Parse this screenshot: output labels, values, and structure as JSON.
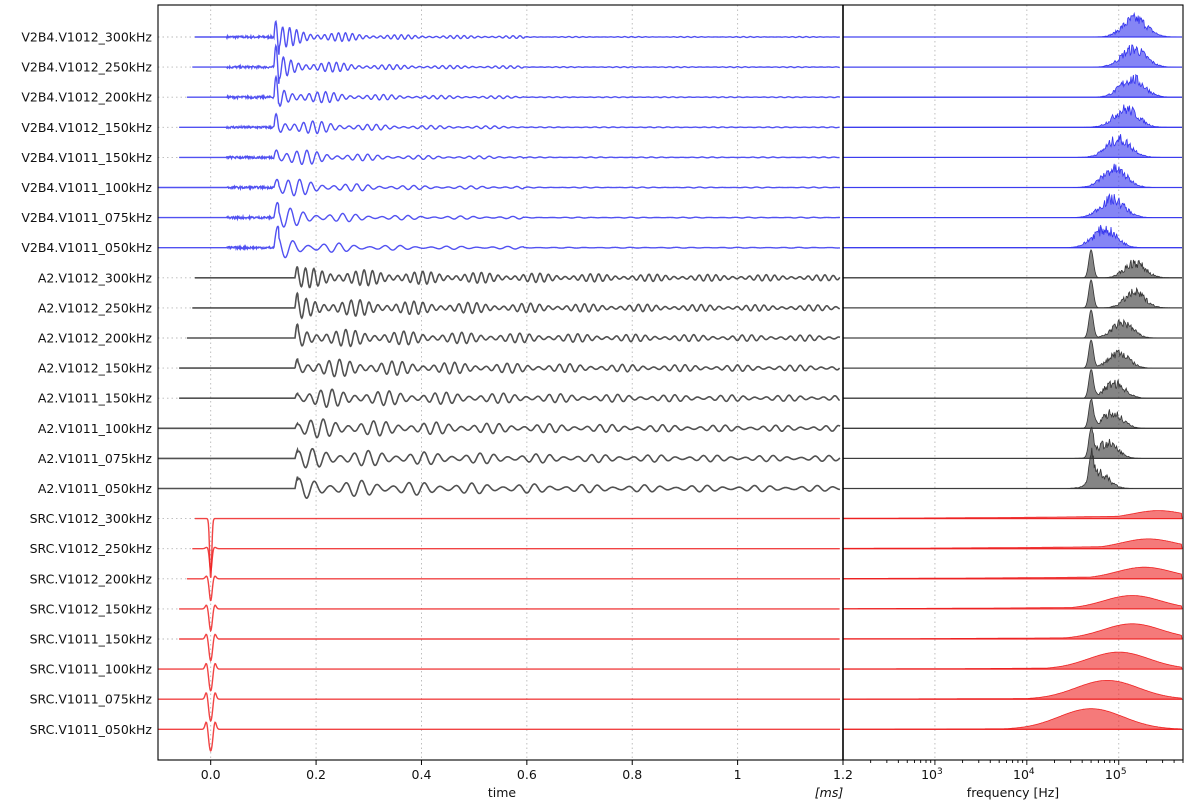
{
  "chart_data": [
    {
      "type": "line",
      "panel": "time",
      "xlabel": "time",
      "unit_label": "[ms]",
      "xlim": [
        -0.1,
        1.2
      ],
      "x_ticks": [
        {
          "value": 0.0,
          "label": "0.0"
        },
        {
          "value": 0.2,
          "label": "0.2"
        },
        {
          "value": 0.4,
          "label": "0.4"
        },
        {
          "value": 0.6,
          "label": "0.6"
        },
        {
          "value": 0.8,
          "label": "0.8"
        },
        {
          "value": 1.0,
          "label": "1"
        },
        {
          "value": 1.2,
          "label": "1.2"
        }
      ],
      "grid": "vertical dotted",
      "groups": [
        {
          "name": "V2B4",
          "color": "#3333ee",
          "onset_ms": 0.12,
          "traces": [
            {
              "label": "V2B4.V1012_300kHz",
              "start_ms": -0.03
            },
            {
              "label": "V2B4.V1012_250kHz",
              "start_ms": -0.035
            },
            {
              "label": "V2B4.V1012_200kHz",
              "start_ms": -0.045
            },
            {
              "label": "V2B4.V1012_150kHz",
              "start_ms": -0.06
            },
            {
              "label": "V2B4.V1011_150kHz",
              "start_ms": -0.06
            },
            {
              "label": "V2B4.V1011_100kHz",
              "start_ms": -0.1
            },
            {
              "label": "V2B4.V1011_075kHz",
              "start_ms": -0.1
            },
            {
              "label": "V2B4.V1011_050kHz",
              "start_ms": -0.1
            }
          ]
        },
        {
          "name": "A2",
          "color": "#333333",
          "onset_ms": 0.16,
          "traces": [
            {
              "label": "A2.V1012_300kHz",
              "start_ms": -0.03
            },
            {
              "label": "A2.V1012_250kHz",
              "start_ms": -0.035
            },
            {
              "label": "A2.V1012_200kHz",
              "start_ms": -0.045
            },
            {
              "label": "A2.V1012_150kHz",
              "start_ms": -0.06
            },
            {
              "label": "A2.V1011_150kHz",
              "start_ms": -0.06
            },
            {
              "label": "A2.V1011_100kHz",
              "start_ms": -0.1
            },
            {
              "label": "A2.V1011_075kHz",
              "start_ms": -0.1
            },
            {
              "label": "A2.V1011_050kHz",
              "start_ms": -0.1
            }
          ]
        },
        {
          "name": "SRC",
          "color": "#ee2222",
          "onset_ms": 0.0,
          "traces": [
            {
              "label": "SRC.V1012_300kHz",
              "start_ms": -0.03
            },
            {
              "label": "SRC.V1012_250kHz",
              "start_ms": -0.035
            },
            {
              "label": "SRC.V1012_200kHz",
              "start_ms": -0.045
            },
            {
              "label": "SRC.V1012_150kHz",
              "start_ms": -0.06
            },
            {
              "label": "SRC.V1011_150kHz",
              "start_ms": -0.06
            },
            {
              "label": "SRC.V1011_100kHz",
              "start_ms": -0.1
            },
            {
              "label": "SRC.V1011_075kHz",
              "start_ms": -0.1
            },
            {
              "label": "SRC.V1011_050kHz",
              "start_ms": -0.1
            }
          ]
        }
      ]
    },
    {
      "type": "area",
      "panel": "spectrum",
      "xlabel": "frequency [Hz]",
      "xscale": "log",
      "xlim_hz": [
        100,
        500000
      ],
      "x_ticks": [
        {
          "value": 1000,
          "base": "10",
          "exp": "3"
        },
        {
          "value": 10000,
          "base": "10",
          "exp": "4"
        },
        {
          "value": 100000,
          "base": "10",
          "exp": "5"
        }
      ],
      "grid": "vertical dotted",
      "group_peak_hz": {
        "V2B4": [
          150000,
          145000,
          140000,
          120000,
          100000,
          90000,
          85000,
          70000
        ],
        "A2": [
          [
            50000,
            150000
          ],
          [
            50000,
            150000
          ],
          [
            50000,
            110000
          ],
          [
            50000,
            100000
          ],
          [
            50000,
            90000
          ],
          [
            50000,
            85000
          ],
          [
            50000,
            75000
          ],
          [
            50000,
            60000
          ]
        ],
        "SRC": [
          270000,
          210000,
          190000,
          140000,
          140000,
          100000,
          75000,
          50000
        ]
      }
    }
  ]
}
